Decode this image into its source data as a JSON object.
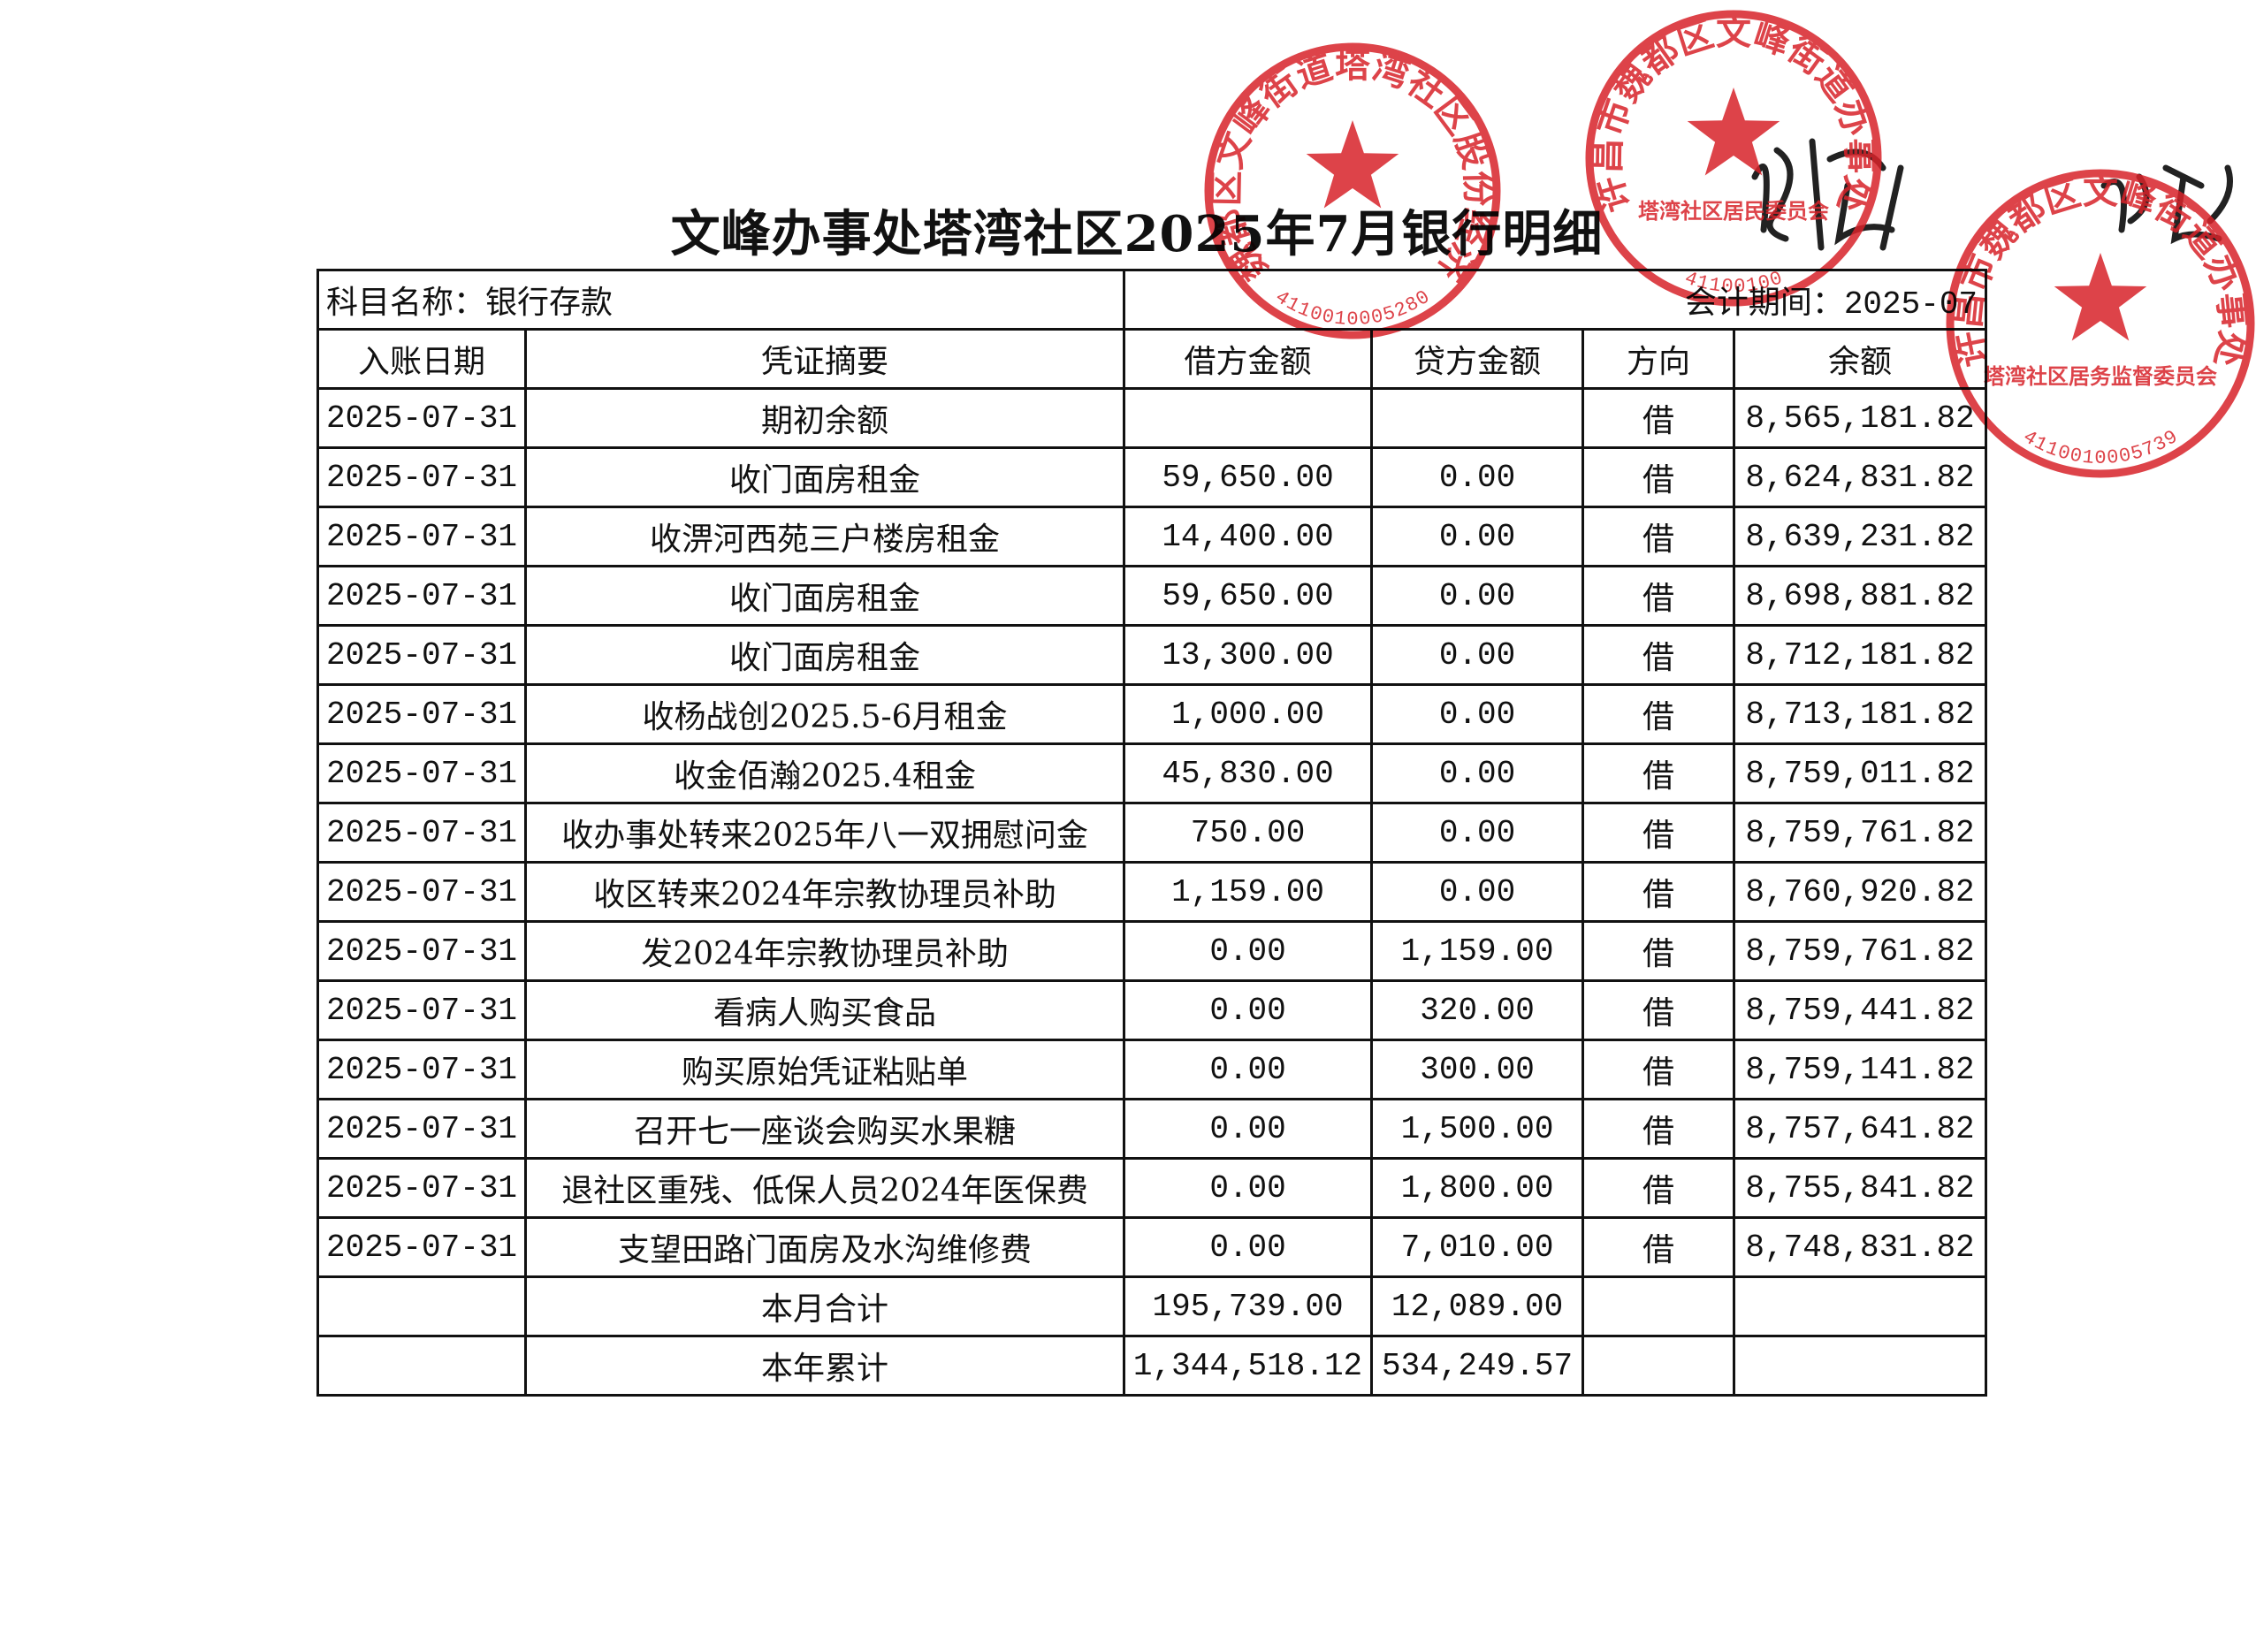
{
  "header": {
    "title": "文峰办事处塔湾社区2025年7月银行明细"
  },
  "table": {
    "subject": "科目名称：银行存款",
    "period": "会计期间：2025-07",
    "columns": [
      "入账日期",
      "凭证摘要",
      "借方金额",
      "贷方金额",
      "方向",
      "余额"
    ],
    "rows": [
      {
        "date": "2025-07-31",
        "summary": "期初余额",
        "direction": "借",
        "balance": "8,565,181.82"
      },
      {
        "date": "2025-07-31",
        "summary": "收门面房租金",
        "debit": "59,650.00",
        "credit": "0.00",
        "direction": "借",
        "balance": "8,624,831.82"
      },
      {
        "date": "2025-07-31",
        "summary": "收淠河西苑三户楼房租金",
        "debit": "14,400.00",
        "credit": "0.00",
        "direction": "借",
        "balance": "8,639,231.82"
      },
      {
        "date": "2025-07-31",
        "summary": "收门面房租金",
        "debit": "59,650.00",
        "credit": "0.00",
        "direction": "借",
        "balance": "8,698,881.82"
      },
      {
        "date": "2025-07-31",
        "summary": "收门面房租金",
        "debit": "13,300.00",
        "credit": "0.00",
        "direction": "借",
        "balance": "8,712,181.82"
      },
      {
        "date": "2025-07-31",
        "summary": "收杨战创2025.5-6月租金",
        "debit": "1,000.00",
        "credit": "0.00",
        "direction": "借",
        "balance": "8,713,181.82"
      },
      {
        "date": "2025-07-31",
        "summary": "收金佰瀚2025.4租金",
        "debit": "45,830.00",
        "credit": "0.00",
        "direction": "借",
        "balance": "8,759,011.82"
      },
      {
        "date": "2025-07-31",
        "summary": "收办事处转来2025年八一双拥慰问金",
        "debit": "750.00",
        "credit": "0.00",
        "direction": "借",
        "balance": "8,759,761.82"
      },
      {
        "date": "2025-07-31",
        "summary": "收区转来2024年宗教协理员补助",
        "debit": "1,159.00",
        "credit": "0.00",
        "direction": "借",
        "balance": "8,760,920.82"
      },
      {
        "date": "2025-07-31",
        "summary": "发2024年宗教协理员补助",
        "debit": "0.00",
        "credit": "1,159.00",
        "direction": "借",
        "balance": "8,759,761.82"
      },
      {
        "date": "2025-07-31",
        "summary": "看病人购买食品",
        "debit": "0.00",
        "credit": "320.00",
        "direction": "借",
        "balance": "8,759,441.82"
      },
      {
        "date": "2025-07-31",
        "summary": "购买原始凭证粘贴单",
        "debit": "0.00",
        "credit": "300.00",
        "direction": "借",
        "balance": "8,759,141.82"
      },
      {
        "date": "2025-07-31",
        "summary": "召开七一座谈会购买水果糖",
        "debit": "0.00",
        "credit": "1,500.00",
        "direction": "借",
        "balance": "8,757,641.82"
      },
      {
        "date": "2025-07-31",
        "summary": "退社区重残、低保人员2024年医保费",
        "debit": "0.00",
        "credit": "1,800.00",
        "direction": "借",
        "balance": "8,755,841.82"
      },
      {
        "date": "2025-07-31",
        "summary": "支望田路门面房及水沟维修费",
        "debit": "0.00",
        "credit": "7,010.00",
        "direction": "借",
        "balance": "8,748,831.82"
      },
      {
        "summary": "本月合计",
        "debit": "195,739.00",
        "credit": "12,089.00"
      },
      {
        "summary": "本年累计",
        "debit": "1,344,518.12",
        "credit": "534,249.57"
      }
    ]
  },
  "stamps": [
    {
      "outer": "许昌市魏都区文峰街道塔湾社区股份经济合作社",
      "code": "4110010005280"
    },
    {
      "outer": "许昌市魏都区文峰街道办事处",
      "inner": "塔湾社区居民委员会",
      "code": "41100100"
    },
    {
      "outer": "许昌市魏都区文峰街道办事处",
      "inner": "塔湾社区居务监督委员会",
      "code": "4110010005739"
    }
  ]
}
